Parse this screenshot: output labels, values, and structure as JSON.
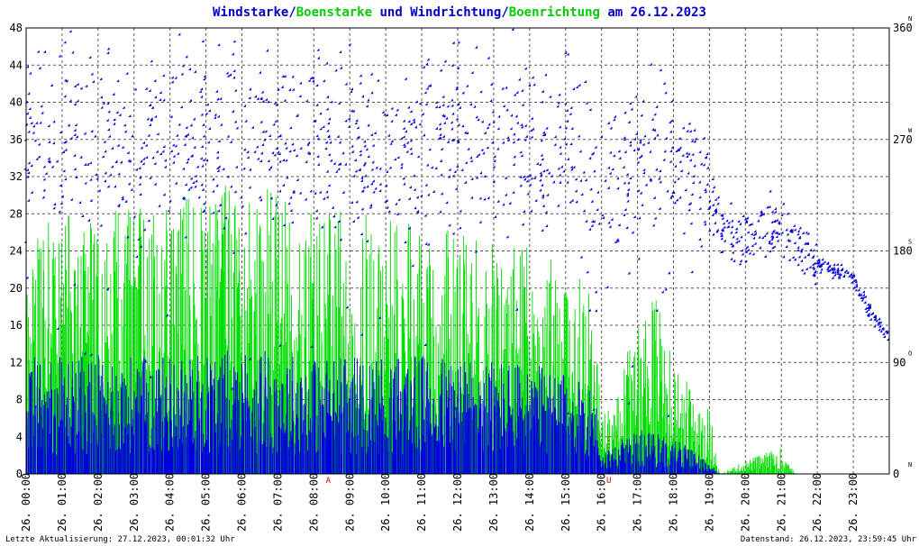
{
  "title": {
    "part1": "Windstarke",
    "sep1": "/",
    "part2": "Boenstarke",
    "mid": " und ",
    "part3": "Windrichtung",
    "sep2": "/",
    "part4": "Boenrichtung",
    "date": " am 26.12.2023"
  },
  "footer": {
    "left": "Letzte Aktualisierung: 27.12.2023, 00:01:32 Uhr",
    "right": "Datenstand: 26.12.2023, 23:59:45 Uhr"
  },
  "colors": {
    "wind": "#0000dd",
    "gust": "#00dd00",
    "sunmark": "#cc0000",
    "grid": "#555555"
  },
  "chart_data": {
    "type": "scatter",
    "series": [
      {
        "name": "Windstarke"
      },
      {
        "name": "Boenstarke"
      },
      {
        "name": "Windrichtung"
      },
      {
        "name": "Boenrichtung"
      }
    ],
    "y_left": {
      "range": [
        0,
        48
      ],
      "ticks": [
        "0",
        "4",
        "8",
        "12",
        "16",
        "20",
        "24",
        "28",
        "32",
        "36",
        "40",
        "44",
        "48"
      ]
    },
    "y_right": {
      "range": [
        0,
        360
      ],
      "ticks": [
        {
          "value": 0,
          "label": "0",
          "dir": "N"
        },
        {
          "value": 90,
          "label": "90",
          "dir": "O"
        },
        {
          "value": 180,
          "label": "180",
          "dir": "S"
        },
        {
          "value": 270,
          "label": "270",
          "dir": "W"
        },
        {
          "value": 360,
          "label": "360",
          "dir": "N"
        }
      ]
    },
    "x": {
      "range": [
        0,
        24
      ],
      "ticks": [
        "26. 00:00",
        "26. 01:00",
        "26. 02:00",
        "26. 03:00",
        "26. 04:00",
        "26. 05:00",
        "26. 06:00",
        "26. 07:00",
        "26. 08:00",
        "26. 09:00",
        "26. 10:00",
        "26. 11:00",
        "26. 12:00",
        "26. 13:00",
        "26. 14:00",
        "26. 15:00",
        "26. 16:00",
        "26. 17:00",
        "26. 18:00",
        "26. 19:00",
        "26. 20:00",
        "26. 21:00",
        "26. 22:00",
        "26. 23:00"
      ]
    },
    "sun_marks": [
      {
        "hour": 8.4,
        "label": "A"
      },
      {
        "hour": 16.2,
        "label": "U"
      }
    ],
    "grid": true,
    "direction_profile": [
      [
        0,
        268
      ],
      [
        1,
        270
      ],
      [
        2,
        262
      ],
      [
        3,
        262
      ],
      [
        4,
        268
      ],
      [
        5,
        270
      ],
      [
        6,
        275
      ],
      [
        7,
        272
      ],
      [
        8,
        268
      ],
      [
        9,
        265
      ],
      [
        10,
        258
      ],
      [
        11,
        262
      ],
      [
        12,
        268
      ],
      [
        13,
        270
      ],
      [
        14,
        272
      ],
      [
        15,
        265
      ],
      [
        16,
        232
      ],
      [
        17,
        245
      ],
      [
        18,
        255
      ],
      [
        18.8,
        240
      ],
      [
        19.3,
        200
      ],
      [
        19.8,
        185
      ],
      [
        20.5,
        195
      ],
      [
        21,
        200
      ],
      [
        21.5,
        180
      ],
      [
        22,
        168
      ],
      [
        22.5,
        165
      ],
      [
        23,
        158
      ],
      [
        23.5,
        130
      ],
      [
        24,
        110
      ]
    ],
    "wind_profile": [
      [
        0,
        8
      ],
      [
        2,
        8
      ],
      [
        4,
        8
      ],
      [
        6,
        8.5
      ],
      [
        8,
        8
      ],
      [
        10,
        8
      ],
      [
        12,
        8
      ],
      [
        14,
        7.5
      ],
      [
        15.8,
        6
      ],
      [
        16,
        1.5
      ],
      [
        17,
        3
      ],
      [
        18,
        2.5
      ],
      [
        19,
        0.8
      ],
      [
        19.3,
        0
      ],
      [
        24,
        0
      ]
    ],
    "gust_profile": [
      [
        0,
        20
      ],
      [
        2,
        20
      ],
      [
        4,
        20
      ],
      [
        6,
        22
      ],
      [
        8,
        20
      ],
      [
        10,
        19
      ],
      [
        12,
        18
      ],
      [
        14,
        17
      ],
      [
        15.8,
        14
      ],
      [
        16,
        4
      ],
      [
        17,
        12
      ],
      [
        17.5,
        14
      ],
      [
        18,
        8
      ],
      [
        19,
        5
      ],
      [
        19.3,
        0
      ],
      [
        20,
        1
      ],
      [
        21,
        2
      ],
      [
        21.4,
        0
      ],
      [
        24,
        0
      ]
    ]
  }
}
